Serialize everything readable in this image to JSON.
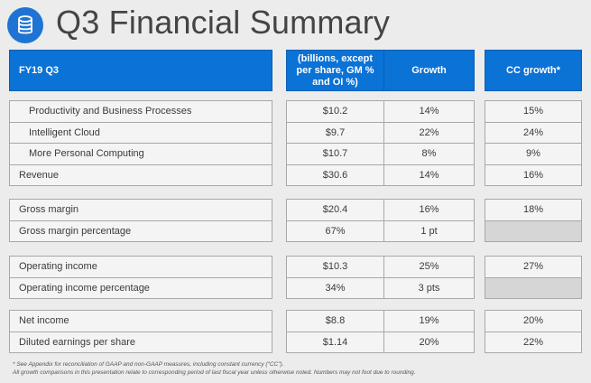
{
  "header": {
    "title": "Q3 Financial Summary",
    "logo_icon": "database-icon"
  },
  "table": {
    "col_label": "FY19 Q3",
    "col_value": "(billions, except per share, GM % and OI %)",
    "col_growth": "Growth",
    "col_cc": "CC growth*",
    "groups": [
      {
        "rows": [
          {
            "label": "Productivity and Business Processes",
            "value": "$10.2",
            "growth": "14%",
            "cc": "15%"
          },
          {
            "label": "Intelligent Cloud",
            "value": "$9.7",
            "growth": "22%",
            "cc": "24%"
          },
          {
            "label": "More Personal Computing",
            "value": "$10.7",
            "growth": "8%",
            "cc": "9%"
          },
          {
            "label": "Revenue",
            "value": "$30.6",
            "growth": "14%",
            "cc": "16%"
          }
        ]
      },
      {
        "rows": [
          {
            "label": "Gross margin",
            "value": "$20.4",
            "growth": "16%",
            "cc": "18%"
          },
          {
            "label": "Gross margin percentage",
            "value": "67%",
            "growth": "1 pt",
            "cc": ""
          }
        ]
      },
      {
        "rows": [
          {
            "label": "Operating income",
            "value": "$10.3",
            "growth": "25%",
            "cc": "27%"
          },
          {
            "label": "Operating income percentage",
            "value": "34%",
            "growth": "3 pts",
            "cc": ""
          }
        ]
      },
      {
        "rows": [
          {
            "label": "Net income",
            "value": "$8.8",
            "growth": "19%",
            "cc": "20%"
          },
          {
            "label": "Diluted earnings per share",
            "value": "$1.14",
            "growth": "20%",
            "cc": "22%"
          }
        ]
      }
    ]
  },
  "footnotes": {
    "line1": "* See Appendix for reconciliation of GAAP and non-GAAP measures, including constant currency (\"CC\").",
    "line2": "All growth comparisons in this presentation relate to corresponding period of last fiscal year unless otherwise noted. Numbers may not foot due to rounding."
  },
  "colors": {
    "header_blue": "#0b72d6",
    "background": "#ececec",
    "cell": "#f4f4f4",
    "empty_cell": "#d6d6d6"
  }
}
